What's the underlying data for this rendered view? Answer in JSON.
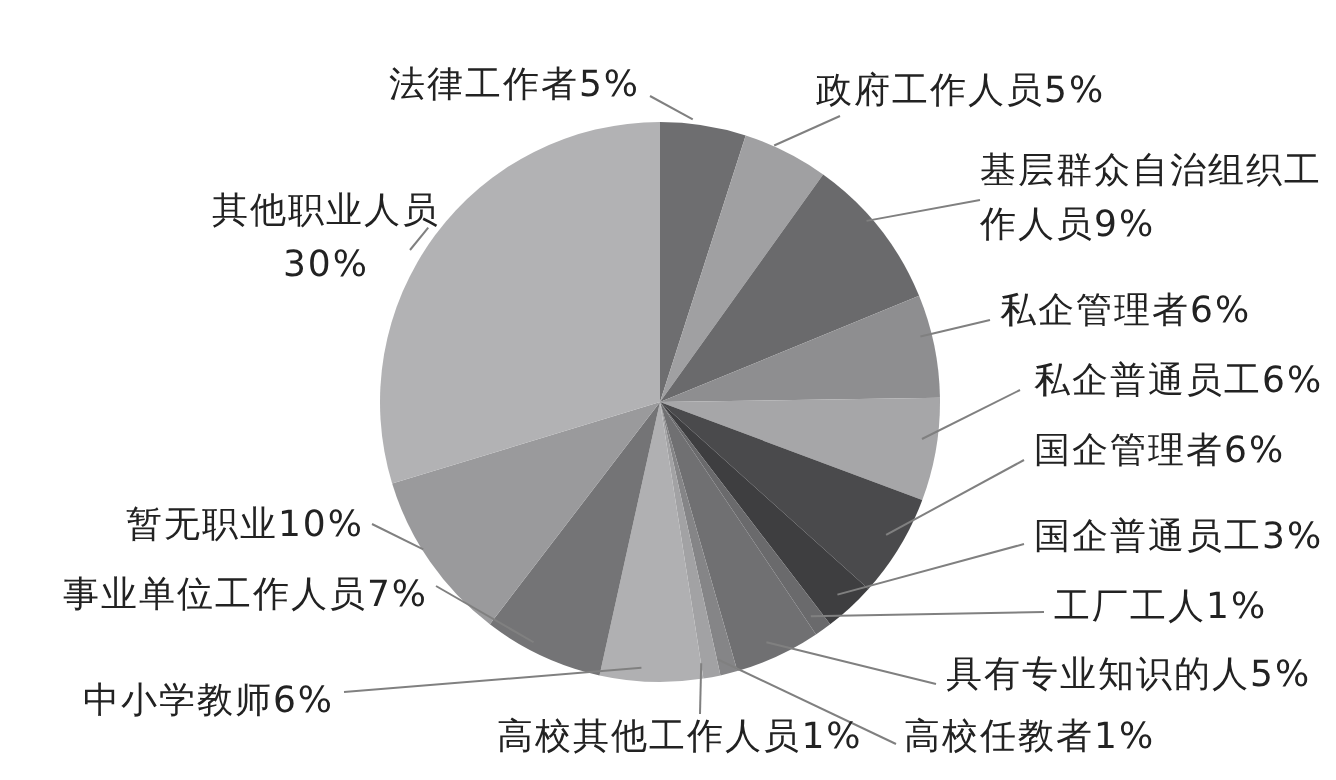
{
  "chart_data": {
    "type": "pie",
    "categories": [
      "法律工作者",
      "政府工作人员",
      "基层群众自治组织工作人员",
      "私企管理者",
      "私企普通员工",
      "国企管理者",
      "国企普通员工",
      "工厂工人",
      "具有专业知识的人",
      "高校任教者",
      "高校其他工作人员",
      "中小学教师",
      "事业单位工作人员",
      "暂无职业",
      "其他职业人员"
    ],
    "values": [
      5,
      5,
      9,
      6,
      6,
      6,
      3,
      1,
      5,
      1,
      1,
      6,
      7,
      10,
      30
    ],
    "value_labels": [
      "5%",
      "5%",
      "9%",
      "6%",
      "6%",
      "6%",
      "3%",
      "1%",
      "5%",
      "1%",
      "1%",
      "6%",
      "7%",
      "10%",
      "30%"
    ],
    "colors": [
      "#6e6e70",
      "#a0a0a2",
      "#6a6a6c",
      "#8e8e90",
      "#a6a6a8",
      "#4a4a4c",
      "#3e3e40",
      "#6a6a6c",
      "#707072",
      "#858587",
      "#a2a2a4",
      "#b0b0b2",
      "#747476",
      "#9a9a9c",
      "#b2b2b4"
    ]
  }
}
